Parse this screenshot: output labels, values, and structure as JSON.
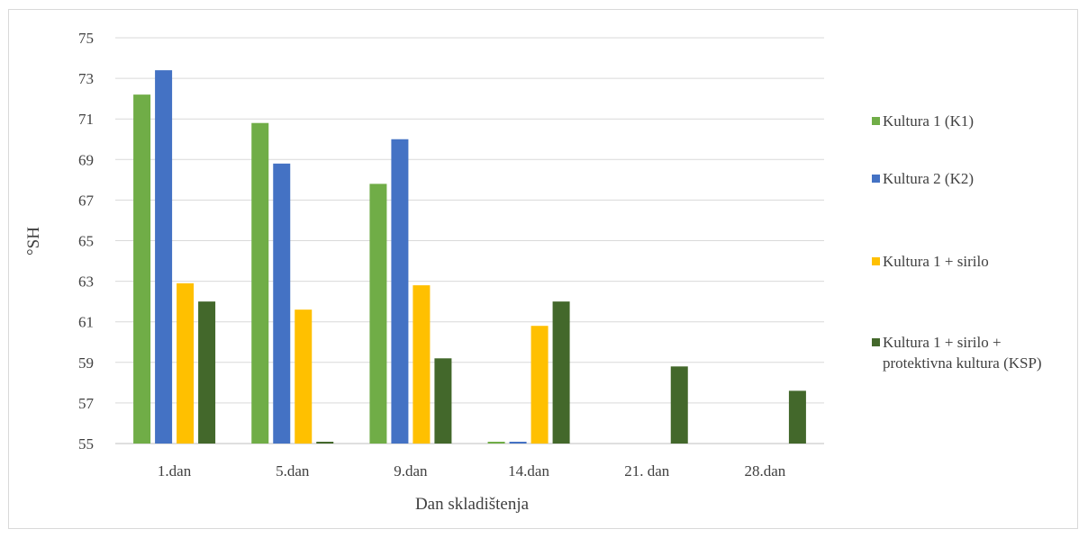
{
  "chart_data": {
    "type": "bar",
    "title": "",
    "xlabel": "Dan skladištenja",
    "ylabel": "°SH",
    "ylim": [
      55,
      75
    ],
    "yticks": [
      55,
      57,
      59,
      61,
      63,
      65,
      67,
      69,
      71,
      73,
      75
    ],
    "ytick_labels": [
      "55",
      "57",
      "59",
      "61",
      "63",
      "65",
      "67",
      "69",
      "71",
      "73",
      "75"
    ],
    "grid": true,
    "legend_position": "right",
    "categories": [
      "1.dan",
      "5.dan",
      "9.dan",
      "14.dan",
      "21. dan",
      "28.dan"
    ],
    "series": [
      {
        "name": "Kultura 1 (K1)",
        "color": "#70ad47",
        "values": [
          72.2,
          70.8,
          67.8,
          55,
          null,
          null
        ]
      },
      {
        "name": "Kultura 2 (K2)",
        "color": "#4472c4",
        "values": [
          73.4,
          68.8,
          70.0,
          55,
          null,
          null
        ]
      },
      {
        "name": "Kultura 1 + sirilo",
        "color": "#ffc000",
        "values": [
          62.9,
          61.6,
          62.8,
          60.8,
          null,
          null
        ]
      },
      {
        "name": "Kultura 1 + sirilo + protektivna kultura (KSP)",
        "color": "#43682b",
        "values": [
          62.0,
          55,
          59.2,
          62.0,
          58.8,
          57.6
        ]
      }
    ]
  }
}
